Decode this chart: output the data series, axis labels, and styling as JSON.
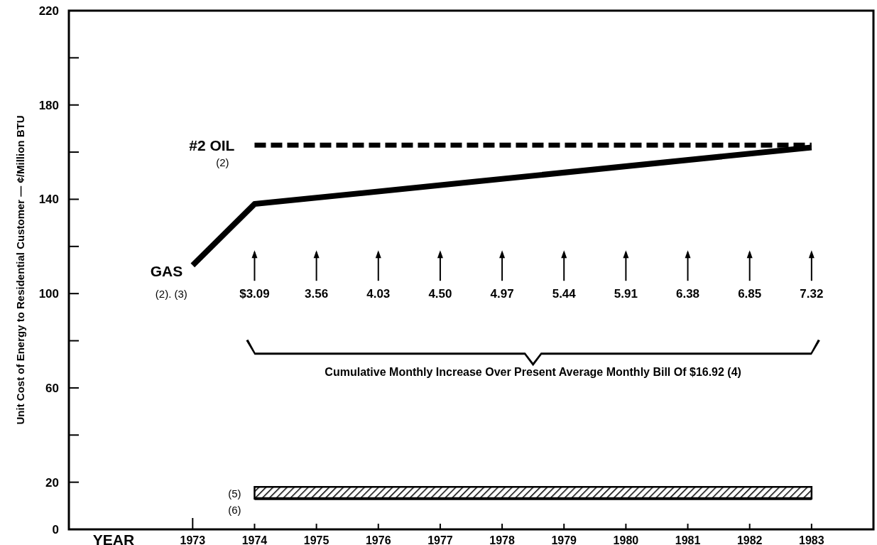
{
  "chart_data": {
    "type": "line",
    "xlabel": "YEAR",
    "ylabel": "Unit Cost of Energy to Residential Customer — ¢/Million BTU",
    "xlim": [
      1971,
      1984
    ],
    "xticks": [
      1973,
      1974,
      1975,
      1976,
      1977,
      1978,
      1979,
      1980,
      1981,
      1982,
      1983
    ],
    "ylim": [
      0,
      220
    ],
    "yticks": [
      0,
      20,
      {
        "value": 40,
        "label": null
      },
      60,
      {
        "value": 80,
        "label": null
      },
      100,
      {
        "value": 120,
        "label": null
      },
      140,
      {
        "value": 160,
        "label": null
      },
      180,
      {
        "value": 200,
        "label": null
      },
      220
    ],
    "grid": false,
    "marker": "none",
    "series": [
      {
        "name": "GAS",
        "color": "#000000",
        "line_style": "solid",
        "x": [
          1973,
          1974,
          1983
        ],
        "values": [
          112,
          138,
          162
        ]
      },
      {
        "name": "#2 OIL",
        "color": "#000000",
        "line_style": "dashed",
        "x": [
          1974,
          1983
        ],
        "values": [
          163,
          163
        ]
      },
      {
        "color": "#000000",
        "line_style": "solid",
        "x": [
          1974,
          1983
        ],
        "values": [
          13,
          13
        ],
        "lower": [
          13,
          13
        ],
        "upper": [
          18,
          18
        ]
      }
    ],
    "annotations": [
      "(2)",
      "(2). (3)",
      "$3.09",
      "3.56",
      "4.03",
      "4.50",
      "4.97",
      "5.44",
      "5.91",
      "6.38",
      "6.85",
      "7.32",
      "Cumulative Monthly Increase Over Present Average Monthly Bill Of $16.92 (4)",
      "(5)",
      "(6)"
    ]
  }
}
